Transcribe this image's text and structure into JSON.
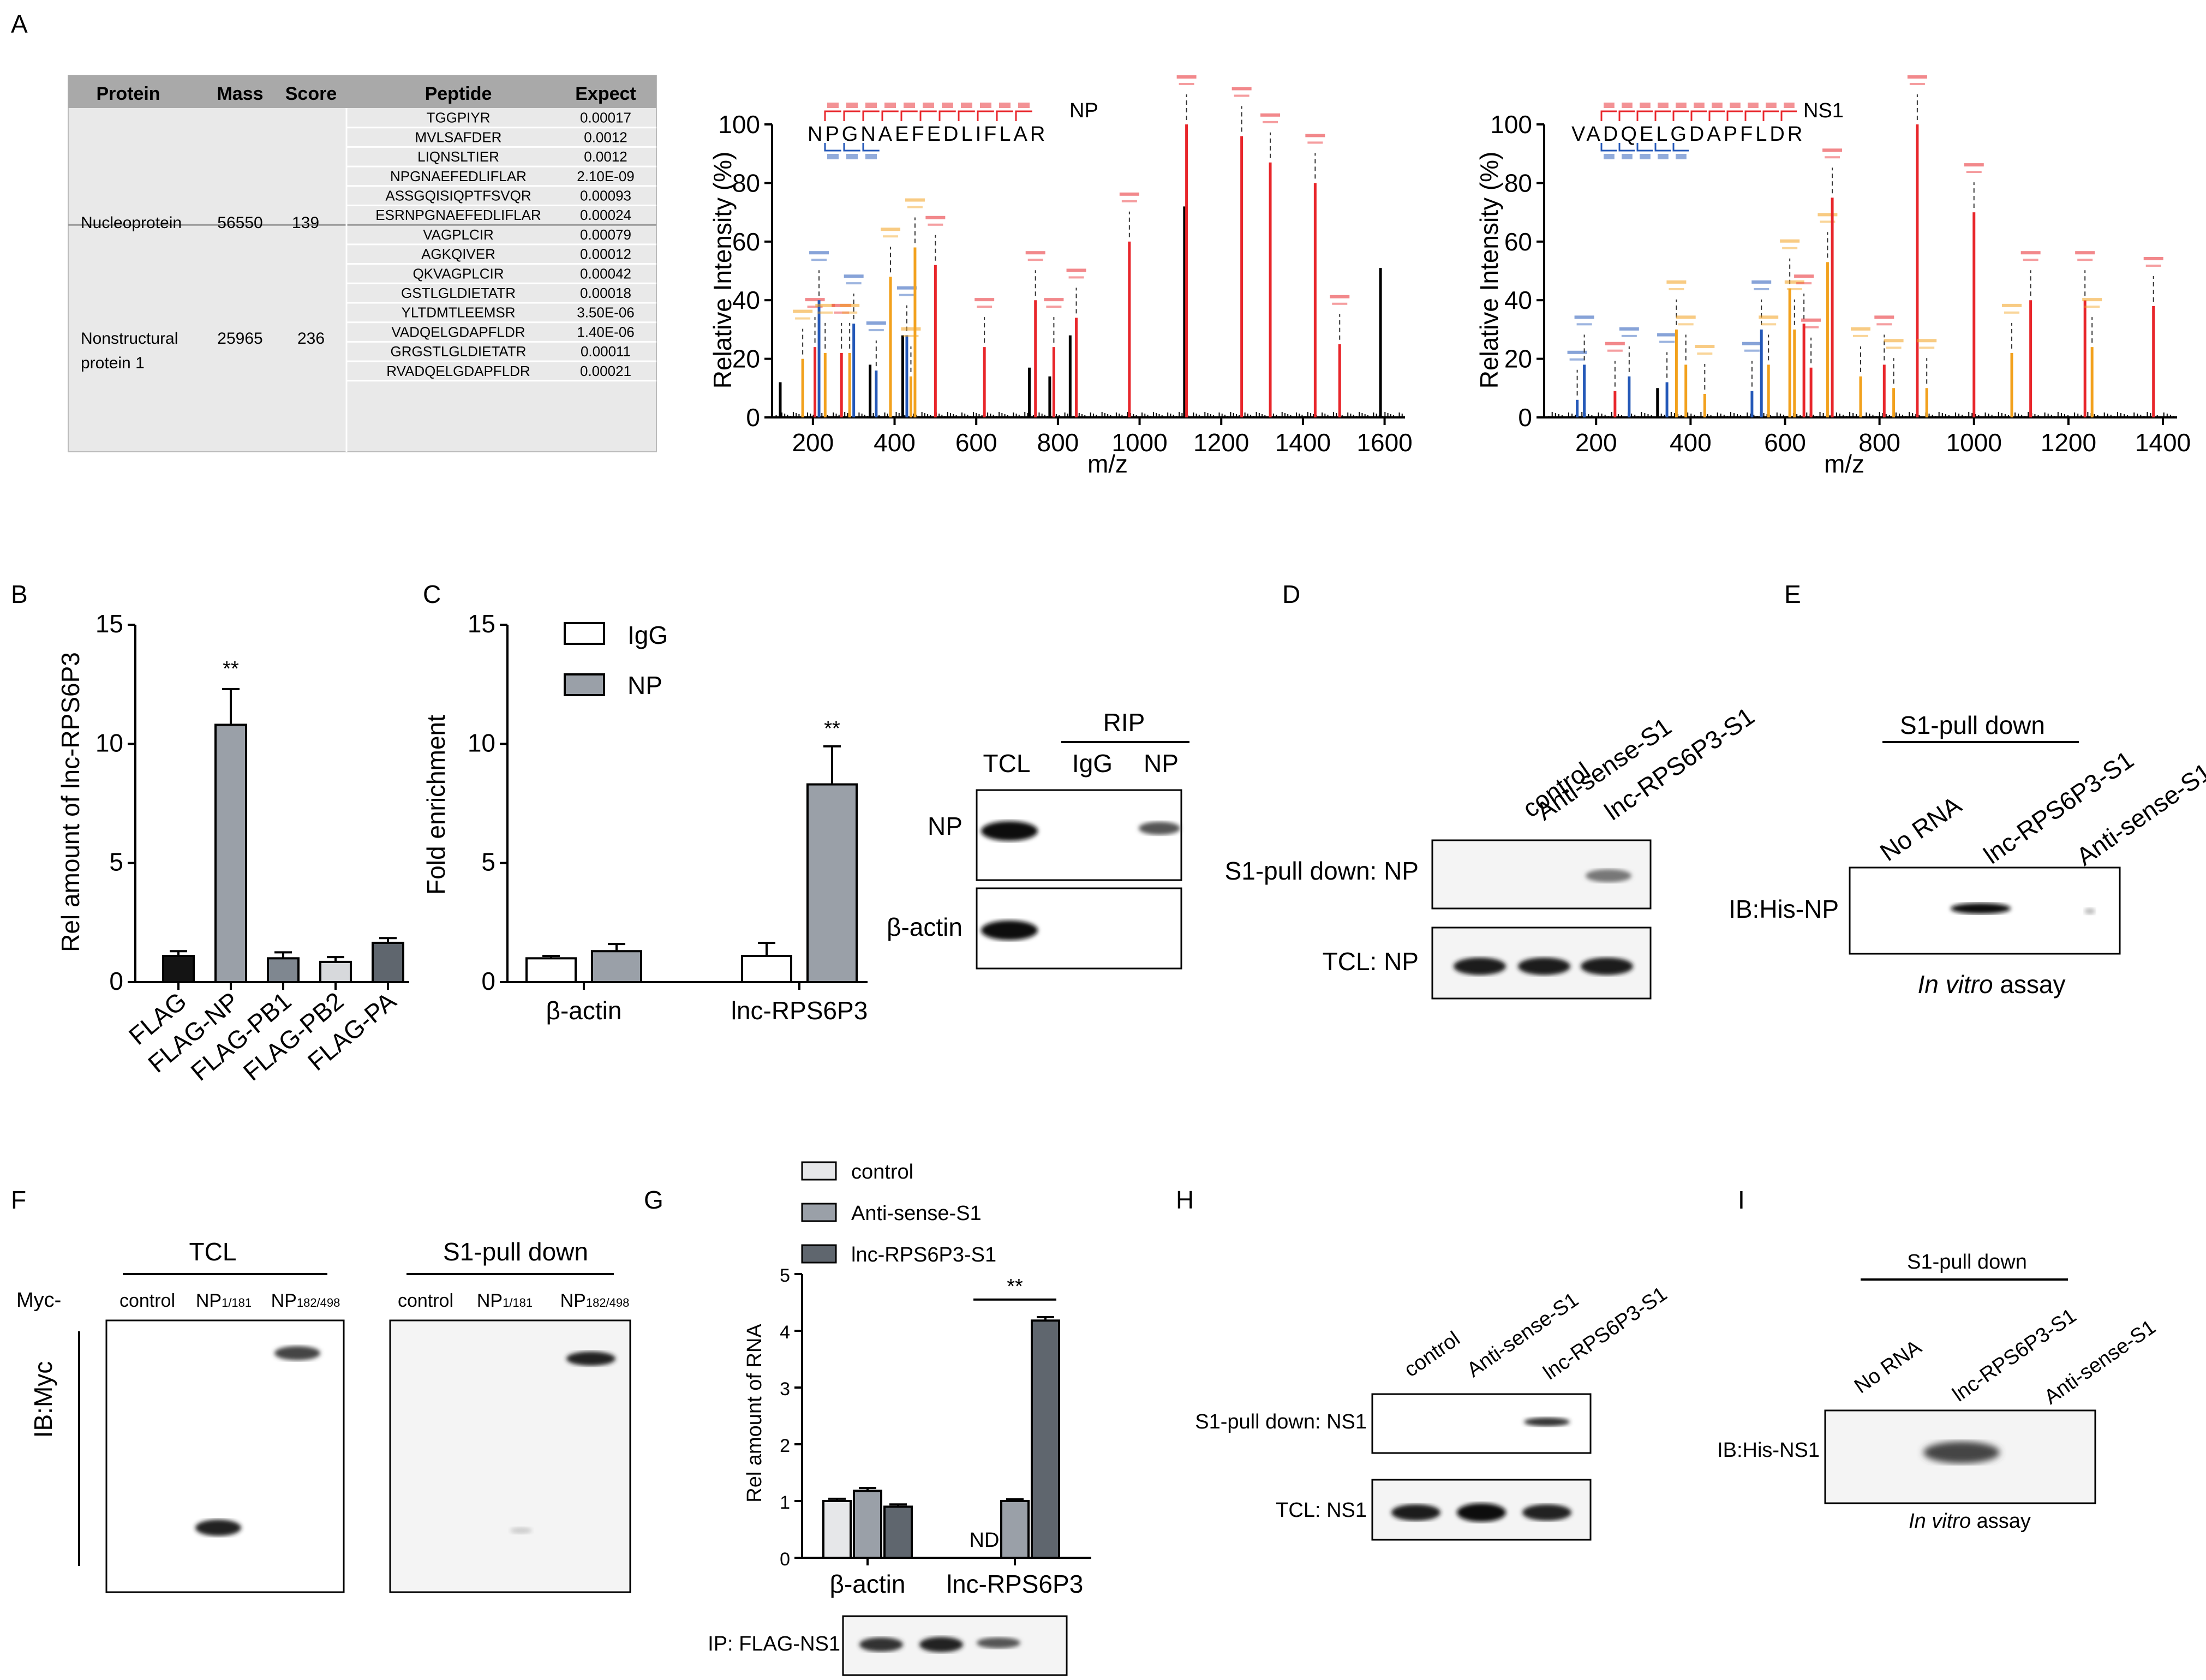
{
  "panels": {
    "A": "A",
    "B": "B",
    "C": "C",
    "D": "D",
    "E": "E",
    "F": "F",
    "G": "G",
    "H": "H",
    "I": "I"
  },
  "table": {
    "headers": [
      "Protein",
      "Mass",
      "Score",
      "Peptide",
      "Expect"
    ],
    "groups": [
      {
        "protein": "Nucleoprotein",
        "mass": "56550",
        "score": "139",
        "rows": [
          [
            "TGGPIYR",
            "0.00017"
          ],
          [
            "MVLSAFDER",
            "0.0012"
          ],
          [
            "LIQNSLTIER",
            "0.0012"
          ],
          [
            "NPGNAEFEDLIFLAR",
            "2.10E-09"
          ],
          [
            "ASSGQISIQPTFSVQR",
            "0.00093"
          ],
          [
            "ESRNPGNAEFEDLIFLAR",
            "0.00024"
          ]
        ]
      },
      {
        "protein_line1": "Nonstructural",
        "protein_line2": "protein 1",
        "mass": "25965",
        "score": "236",
        "rows": [
          [
            "VAGPLCIR",
            "0.00079"
          ],
          [
            "AGKQIVER",
            "0.00012"
          ],
          [
            "QKVAGPLCIR",
            "0.00042"
          ],
          [
            "GSTLGLDIETATR",
            "0.00018"
          ],
          [
            "YLTDMTLEEMSR",
            "3.50E-06"
          ],
          [
            "VADQELGDAPFLDR",
            "1.40E-06"
          ],
          [
            "GRGSTLGLDIETATR",
            "0.00011"
          ],
          [
            "RVADQELGDAPFLDR",
            "0.00021"
          ]
        ]
      }
    ]
  },
  "spectrum_np": {
    "label": "NP",
    "sequence": "NPGNAEFEDLIFLAR",
    "ylabel": "Relative Intensity (%)",
    "xlabel": "m/z"
  },
  "spectrum_ns1": {
    "label": "NS1",
    "sequence": "VADQELGDAPFLDR",
    "ylabel": "Relative Intensity (%)",
    "xlabel": "m/z"
  },
  "chart_data": [
    {
      "type": "line",
      "title": "NP",
      "xlabel": "m/z",
      "ylabel": "Relative Intensity (%)",
      "xlim": [
        100,
        1650
      ],
      "ylim": [
        0,
        100
      ],
      "xticks": [
        200,
        400,
        600,
        800,
        1000,
        1200,
        1400,
        1600
      ],
      "yticks": [
        0,
        20,
        40,
        60,
        80,
        100
      ],
      "peaks": [
        {
          "x": 120,
          "y": 12,
          "c": "black"
        },
        {
          "x": 175,
          "y": 20,
          "c": "orange"
        },
        {
          "x": 205,
          "y": 24,
          "c": "red"
        },
        {
          "x": 215,
          "y": 40,
          "c": "blue"
        },
        {
          "x": 230,
          "y": 22,
          "c": "orange"
        },
        {
          "x": 270,
          "y": 22,
          "c": "red"
        },
        {
          "x": 290,
          "y": 22,
          "c": "orange"
        },
        {
          "x": 300,
          "y": 32,
          "c": "blue"
        },
        {
          "x": 340,
          "y": 18,
          "c": "black"
        },
        {
          "x": 355,
          "y": 16,
          "c": "blue"
        },
        {
          "x": 390,
          "y": 48,
          "c": "orange"
        },
        {
          "x": 420,
          "y": 28,
          "c": "black"
        },
        {
          "x": 430,
          "y": 28,
          "c": "blue"
        },
        {
          "x": 440,
          "y": 14,
          "c": "orange"
        },
        {
          "x": 450,
          "y": 58,
          "c": "orange"
        },
        {
          "x": 500,
          "y": 52,
          "c": "red"
        },
        {
          "x": 620,
          "y": 24,
          "c": "red"
        },
        {
          "x": 730,
          "y": 17,
          "c": "black"
        },
        {
          "x": 745,
          "y": 40,
          "c": "red"
        },
        {
          "x": 780,
          "y": 14,
          "c": "black"
        },
        {
          "x": 790,
          "y": 24,
          "c": "red"
        },
        {
          "x": 830,
          "y": 28,
          "c": "black"
        },
        {
          "x": 845,
          "y": 34,
          "c": "red"
        },
        {
          "x": 975,
          "y": 60,
          "c": "red"
        },
        {
          "x": 1110,
          "y": 72,
          "c": "black"
        },
        {
          "x": 1115,
          "y": 100,
          "c": "red"
        },
        {
          "x": 1250,
          "y": 96,
          "c": "red"
        },
        {
          "x": 1320,
          "y": 87,
          "c": "red"
        },
        {
          "x": 1430,
          "y": 80,
          "c": "red"
        },
        {
          "x": 1490,
          "y": 25,
          "c": "red"
        },
        {
          "x": 1590,
          "y": 51,
          "c": "black"
        }
      ]
    },
    {
      "type": "line",
      "title": "NS1",
      "xlabel": "m/z",
      "ylabel": "Relative Intensity (%)",
      "xlim": [
        90,
        1430
      ],
      "ylim": [
        0,
        100
      ],
      "xticks": [
        200,
        400,
        600,
        800,
        1000,
        1200,
        1400
      ],
      "yticks": [
        0,
        20,
        40,
        60,
        80,
        100
      ],
      "peaks": [
        {
          "x": 160,
          "y": 6,
          "c": "blue"
        },
        {
          "x": 175,
          "y": 18,
          "c": "blue"
        },
        {
          "x": 240,
          "y": 9,
          "c": "red"
        },
        {
          "x": 270,
          "y": 14,
          "c": "blue"
        },
        {
          "x": 330,
          "y": 10,
          "c": "black"
        },
        {
          "x": 350,
          "y": 12,
          "c": "blue"
        },
        {
          "x": 370,
          "y": 30,
          "c": "orange"
        },
        {
          "x": 390,
          "y": 18,
          "c": "orange"
        },
        {
          "x": 430,
          "y": 8,
          "c": "orange"
        },
        {
          "x": 530,
          "y": 9,
          "c": "blue"
        },
        {
          "x": 550,
          "y": 30,
          "c": "blue"
        },
        {
          "x": 565,
          "y": 18,
          "c": "orange"
        },
        {
          "x": 610,
          "y": 44,
          "c": "orange"
        },
        {
          "x": 620,
          "y": 30,
          "c": "orange"
        },
        {
          "x": 640,
          "y": 32,
          "c": "red"
        },
        {
          "x": 655,
          "y": 17,
          "c": "red"
        },
        {
          "x": 690,
          "y": 53,
          "c": "orange"
        },
        {
          "x": 700,
          "y": 75,
          "c": "red"
        },
        {
          "x": 760,
          "y": 14,
          "c": "orange"
        },
        {
          "x": 810,
          "y": 18,
          "c": "red"
        },
        {
          "x": 830,
          "y": 10,
          "c": "orange"
        },
        {
          "x": 880,
          "y": 100,
          "c": "red"
        },
        {
          "x": 900,
          "y": 10,
          "c": "orange"
        },
        {
          "x": 1000,
          "y": 70,
          "c": "red"
        },
        {
          "x": 1080,
          "y": 22,
          "c": "orange"
        },
        {
          "x": 1120,
          "y": 40,
          "c": "red"
        },
        {
          "x": 1235,
          "y": 40,
          "c": "red"
        },
        {
          "x": 1250,
          "y": 24,
          "c": "orange"
        },
        {
          "x": 1380,
          "y": 38,
          "c": "red"
        }
      ]
    },
    {
      "type": "bar",
      "title": "B",
      "ylabel": "Rel amount of lnc-RPS6P3",
      "ylim": [
        0,
        15
      ],
      "yticks": [
        0,
        5,
        10,
        15
      ],
      "categories": [
        "FLAG",
        "FLAG-NP",
        "FLAG-PB1",
        "FLAG-PB2",
        "FLAG-PA"
      ],
      "values": [
        1.1,
        10.8,
        1.0,
        0.85,
        1.65
      ],
      "errors": [
        0.2,
        1.5,
        0.25,
        0.2,
        0.2
      ],
      "colors": [
        "#141414",
        "#9aa0a8",
        "#7f8790",
        "#d7d9dc",
        "#5f666e"
      ],
      "annotations": [
        "",
        "**",
        "",
        "",
        ""
      ]
    },
    {
      "type": "bar",
      "title": "C",
      "ylabel": "Fold enrichment",
      "ylim": [
        0,
        15
      ],
      "yticks": [
        0,
        5,
        10,
        15
      ],
      "categories": [
        "β-actin",
        "lnc-RPS6P3"
      ],
      "series": [
        {
          "name": "IgG",
          "values": [
            1.0,
            1.1
          ],
          "errors": [
            0.1,
            0.55
          ]
        },
        {
          "name": "NP",
          "values": [
            1.3,
            8.3
          ],
          "errors": [
            0.3,
            1.6
          ]
        }
      ],
      "annotations": [
        "",
        "**"
      ]
    },
    {
      "type": "bar",
      "title": "G",
      "ylabel": "Rel amount of RNA",
      "ylim": [
        0,
        5
      ],
      "yticks": [
        0,
        1,
        2,
        3,
        4,
        5
      ],
      "categories": [
        "β-actin",
        "lnc-RPS6P3"
      ],
      "series": [
        {
          "name": "control",
          "values": [
            1.0,
            null
          ],
          "errors": [
            0.04,
            0
          ]
        },
        {
          "name": "Anti-sense-S1",
          "values": [
            1.18,
            1.0
          ],
          "errors": [
            0.05,
            0.03
          ]
        },
        {
          "name": "lnc-RPS6P3-S1",
          "values": [
            0.9,
            4.18
          ],
          "errors": [
            0.04,
            0.06
          ]
        }
      ],
      "annotations": [
        "ND",
        "**"
      ]
    }
  ],
  "panel_b": {
    "ylabel": "Rel amount of lnc-RPS6P3",
    "sig": "**",
    "categories": [
      "FLAG",
      "FLAG-NP",
      "FLAG-PB1",
      "FLAG-PB2",
      "FLAG-PA"
    ]
  },
  "panel_c": {
    "ylabel": "Fold enrichment",
    "legend": [
      "IgG",
      "NP"
    ],
    "sig": "**",
    "xcats": [
      "β-actin",
      "lnc-RPS6P3"
    ],
    "blot_cols": [
      "TCL",
      "IgG",
      "NP"
    ],
    "rip": "RIP",
    "rows": [
      "NP",
      "β-actin"
    ]
  },
  "panel_d": {
    "lanes": [
      "control",
      "Anti-sense-S1",
      "lnc-RPS6P3-S1"
    ],
    "rows": [
      "S1-pull down: NP",
      "TCL: NP"
    ]
  },
  "panel_e": {
    "header": "S1-pull down",
    "lanes": [
      "No RNA",
      "lnc-RPS6P3-S1",
      "Anti-sense-S1"
    ],
    "row": "IB:His-NP",
    "caption_italic": "In vitro",
    "caption_rest": " assay"
  },
  "panel_f": {
    "myc": "Myc-",
    "tcl": "TCL",
    "pull": "S1-pull down",
    "lanes": [
      "control",
      "NP",
      "NP"
    ],
    "sub1": "1/181",
    "sub2": "182/498",
    "ib": "IB:Myc"
  },
  "panel_g": {
    "ylabel": "Rel amount of RNA",
    "legend": [
      "control",
      "Anti-sense-S1",
      "lnc-RPS6P3-S1"
    ],
    "sig": "**",
    "nd": "ND",
    "xcats": [
      "β-actin",
      "lnc-RPS6P3"
    ],
    "ip": "IP: FLAG-NS1"
  },
  "panel_h": {
    "lanes": [
      "control",
      "Anti-sense-S1",
      "lnc-RPS6P3-S1"
    ],
    "rows": [
      "S1-pull down: NS1",
      "TCL: NS1"
    ]
  },
  "panel_i": {
    "header": "S1-pull down",
    "lanes": [
      "No RNA",
      "lnc-RPS6P3-S1",
      "Anti-sense-S1"
    ],
    "row": "IB:His-NS1",
    "caption_italic": "In vitro",
    "caption_rest": " assay"
  }
}
